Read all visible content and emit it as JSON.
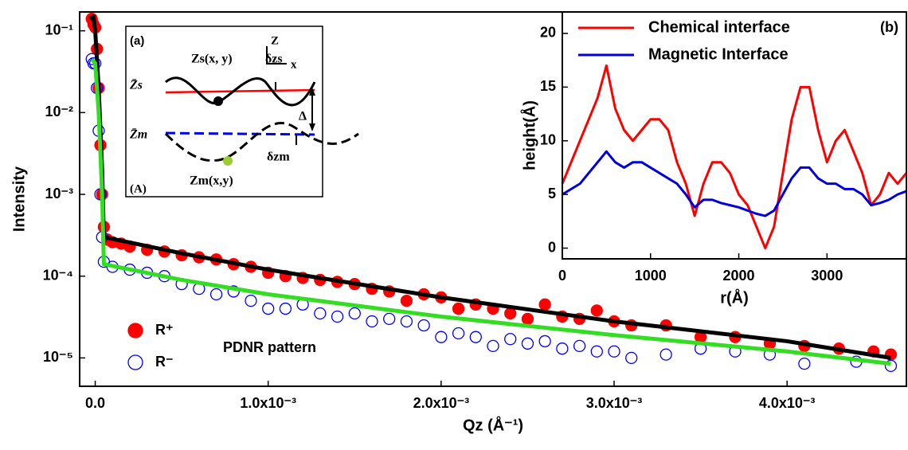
{
  "chart_data": [
    {
      "type": "scatter",
      "xlabel": "Qz (Å⁻¹)",
      "ylabel": "Intensity",
      "ylog": true,
      "xlim": [
        -9e-05,
        0.00469
      ],
      "ylim": [
        4.5e-06,
        0.17
      ],
      "xticks": [
        {
          "value": 0,
          "label": "0.0"
        },
        {
          "value": 0.001,
          "label": "1.0x10⁻³"
        },
        {
          "value": 0.002,
          "label": "2.0x10⁻³"
        },
        {
          "value": 0.003,
          "label": "3.0x10⁻³"
        },
        {
          "value": 0.004,
          "label": "4.0x10⁻³"
        }
      ],
      "yticks": [
        {
          "value": 0.1,
          "label": "10⁻¹"
        },
        {
          "value": 0.01,
          "label": "10⁻²"
        },
        {
          "value": 0.001,
          "label": "10⁻³"
        },
        {
          "value": 0.0001,
          "label": "10⁻⁴"
        },
        {
          "value": 1e-05,
          "label": "10⁻⁵"
        }
      ],
      "legend": "lower left",
      "annotation": "PDNR pattern",
      "series": [
        {
          "name": "R⁺",
          "color": "#ff0000",
          "marker": "filled",
          "x": [
            -2e-05,
            -1e-05,
            0,
            1e-05,
            2e-05,
            3e-05,
            4e-05,
            5e-05,
            7e-05,
            0.0001,
            0.00015,
            0.0002,
            0.0003,
            0.0004,
            0.0005,
            0.0006,
            0.0007,
            0.0008,
            0.0009,
            0.001,
            0.0011,
            0.0012,
            0.0013,
            0.0014,
            0.0015,
            0.0016,
            0.0017,
            0.0018,
            0.0019,
            0.002,
            0.0021,
            0.0022,
            0.0023,
            0.0024,
            0.0025,
            0.0026,
            0.0027,
            0.0028,
            0.0029,
            0.003,
            0.0031,
            0.0033,
            0.0035,
            0.0037,
            0.0039,
            0.0041,
            0.0043,
            0.0045,
            0.0046
          ],
          "values": [
            0.14,
            0.12,
            0.11,
            0.06,
            0.02,
            0.004,
            0.001,
            0.0004,
            0.00028,
            0.00026,
            0.00025,
            0.00023,
            0.00021,
            0.0002,
            0.00018,
            0.00017,
            0.00016,
            0.00014,
            0.00013,
            0.00011,
            0.0001,
            9.5e-05,
            9e-05,
            8.5e-05,
            8e-05,
            7e-05,
            6.5e-05,
            5e-05,
            6e-05,
            5.5e-05,
            4e-05,
            4.5e-05,
            4e-05,
            3.5e-05,
            3e-05,
            4.5e-05,
            3.2e-05,
            3e-05,
            3.8e-05,
            2.8e-05,
            2.5e-05,
            2.5e-05,
            1.8e-05,
            1.8e-05,
            1.5e-05,
            1.4e-05,
            1.3e-05,
            1.2e-05,
            1.1e-05
          ]
        },
        {
          "name": "R⁻",
          "color": "#0000ff",
          "marker": "open",
          "x": [
            -2e-05,
            -1e-05,
            0,
            1e-05,
            2e-05,
            3e-05,
            4e-05,
            5e-05,
            0.0001,
            0.0002,
            0.0003,
            0.0004,
            0.0005,
            0.0006,
            0.0007,
            0.0008,
            0.0009,
            0.001,
            0.0011,
            0.0012,
            0.0013,
            0.0014,
            0.0015,
            0.0016,
            0.0017,
            0.0018,
            0.0019,
            0.002,
            0.0021,
            0.0022,
            0.0023,
            0.0024,
            0.0025,
            0.0026,
            0.0027,
            0.0028,
            0.0029,
            0.003,
            0.0031,
            0.0033,
            0.0035,
            0.0037,
            0.0039,
            0.0041,
            0.0044,
            0.0046
          ],
          "values": [
            0.045,
            0.04,
            0.04,
            0.02,
            0.006,
            0.001,
            0.0003,
            0.00015,
            0.00013,
            0.00012,
            0.00011,
            0.0001,
            8e-05,
            7e-05,
            6e-05,
            6.5e-05,
            5e-05,
            4e-05,
            4e-05,
            4.5e-05,
            3.5e-05,
            3.2e-05,
            3.5e-05,
            2.8e-05,
            3e-05,
            2.8e-05,
            2.5e-05,
            1.8e-05,
            2e-05,
            1.8e-05,
            1.4e-05,
            1.7e-05,
            1.5e-05,
            1.6e-05,
            1.3e-05,
            1.4e-05,
            1.2e-05,
            1.2e-05,
            1e-05,
            1.1e-05,
            1.3e-05,
            1.2e-05,
            1.1e-05,
            8.5e-06,
            9e-06,
            8e-06
          ]
        }
      ],
      "fits": [
        {
          "color": "#000000",
          "x": [
            -3e-05,
            -1e-05,
            0,
            2e-05,
            4e-05,
            5e-05,
            0.0005,
            0.001,
            0.002,
            0.003,
            0.004,
            0.0046
          ],
          "values": [
            0.14,
            0.15,
            0.1,
            0.02,
            0.002,
            0.0003,
            0.00019,
            0.00012,
            5.5e-05,
            2.8e-05,
            1.6e-05,
            1e-05
          ]
        },
        {
          "color": "#33dd22",
          "x": [
            -2e-05,
            0,
            2e-05,
            4e-05,
            5e-05,
            0.0005,
            0.001,
            0.002,
            0.003,
            0.004,
            0.0046
          ],
          "values": [
            0.045,
            0.04,
            0.01,
            0.001,
            0.00014,
            9e-05,
            6e-05,
            3.2e-05,
            1.9e-05,
            1.2e-05,
            8.5e-06
          ]
        }
      ]
    },
    {
      "type": "line",
      "xlabel": "r(Å)",
      "ylabel": "height(Å)",
      "annotation": "(b)",
      "legend": "upper left",
      "xlim": [
        0,
        3900
      ],
      "ylim": [
        -1,
        22
      ],
      "xticks": [
        0,
        1000,
        2000,
        3000
      ],
      "yticks": [
        0,
        5,
        10,
        15,
        20
      ],
      "x": [
        0,
        100,
        200,
        300,
        400,
        500,
        600,
        700,
        800,
        900,
        1000,
        1100,
        1200,
        1300,
        1400,
        1500,
        1600,
        1700,
        1800,
        1900,
        2000,
        2100,
        2200,
        2300,
        2400,
        2500,
        2600,
        2700,
        2800,
        2900,
        3000,
        3100,
        3200,
        3300,
        3400,
        3500,
        3600,
        3700,
        3800,
        3900
      ],
      "series": [
        {
          "name": "Chemical interface",
          "color": "#ff0000",
          "values": [
            6,
            8,
            10,
            12,
            14,
            17,
            13,
            11,
            10,
            11,
            12,
            12,
            11,
            8,
            6,
            3,
            6,
            8,
            8,
            7,
            5,
            4,
            2,
            0,
            2,
            7,
            12,
            15,
            15,
            11,
            8,
            10,
            11,
            9,
            7,
            4,
            5,
            7,
            6,
            7
          ]
        },
        {
          "name": "Magnetic Interface",
          "color": "#0000dd",
          "values": [
            5,
            5.5,
            6,
            7,
            8,
            9,
            8,
            7.5,
            8,
            8,
            7.5,
            7,
            6.5,
            6,
            5,
            3.8,
            4.5,
            4.5,
            4.2,
            4,
            3.8,
            3.5,
            3.2,
            3,
            3.5,
            5,
            6.5,
            7.5,
            7.5,
            6.5,
            6,
            6,
            5.5,
            5.5,
            5,
            4,
            4.2,
            4.5,
            5,
            5.3
          ]
        }
      ]
    }
  ],
  "diagram": {
    "panel": "(a)",
    "zs": "Zs(x, y)",
    "dzs": "δzs",
    "axis_z": "Z",
    "axis_x": "x",
    "zs_bar": "Z̄s",
    "zm_bar": "Z̄m",
    "delta": "Δ",
    "dzm": "δzm",
    "zm": "Zm(x,y)",
    "label": "(A)"
  }
}
